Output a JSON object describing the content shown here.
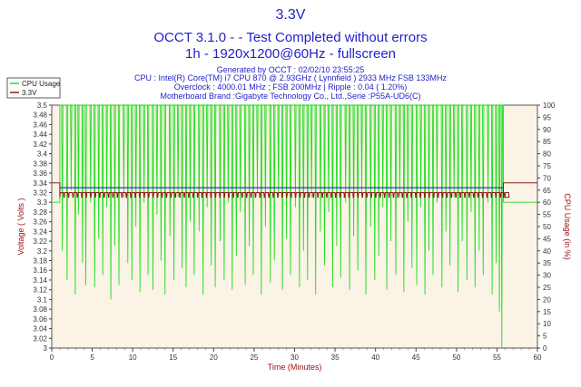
{
  "header": {
    "title": "3.3V",
    "subtitle1": "OCCT 3.1.0 -  - Test Completed without errors",
    "subtitle2": "1h - 1920x1200@60Hz - fullscreen",
    "generated": "Generated by OCCT : 02/02/10 23:55:25",
    "cpu": "CPU : Intel(R) Core(TM) i7 CPU 870 @ 2.93GHz ( Lynnfield ) 2933 MHz FSB 133MHz",
    "overclock": "Overclock : 4000.01 MHz ; FSB 200MHz | Ripple : 0.04 ( 1.20%)",
    "motherboard": "Motherboard Brand :Gigabyte Technology Co., Ltd.,Serie :P55A-UD6(C)"
  },
  "colors": {
    "voltage": "#8b1a1a",
    "cpu": "#22dd22",
    "average": "#3333cc",
    "plot_bg": "#fbf3e6",
    "axis_text_left": "#a01010",
    "axis_text_right": "#a01010"
  },
  "chart_data": {
    "type": "line",
    "xlabel": "Time (Minutes)",
    "ylabel": "Voltage ( Volts )",
    "y2label": "CPU Usage (in %)",
    "xlim": [
      0,
      60
    ],
    "ylim": [
      3.0,
      3.5
    ],
    "y2lim": [
      0,
      100
    ],
    "x_ticks": [
      "0",
      "5",
      "10",
      "15",
      "20",
      "25",
      "30",
      "35",
      "40",
      "45",
      "50",
      "55",
      "60"
    ],
    "y_ticks": [
      "3",
      "3.02",
      "3.04",
      "3.06",
      "3.08",
      "3.1",
      "3.12",
      "3.14",
      "3.16",
      "3.18",
      "3.2",
      "3.22",
      "3.24",
      "3.26",
      "3.28",
      "3.3",
      "3.32",
      "3.34",
      "3.36",
      "3.38",
      "3.4",
      "3.42",
      "3.44",
      "3.46",
      "3.48",
      "3.5"
    ],
    "y2_ticks": [
      "0",
      "5",
      "10",
      "15",
      "20",
      "25",
      "30",
      "35",
      "40",
      "45",
      "50",
      "55",
      "60",
      "65",
      "70",
      "75",
      "80",
      "85",
      "90",
      "95",
      "100"
    ],
    "grid": false,
    "legend_position": "top-left",
    "series": [
      {
        "name": "CPU Usage",
        "axis": "right",
        "idle_value": 60,
        "load_value": 100,
        "load_start": 1,
        "load_end": 55.8,
        "dips": [
          [
            1.3,
            40
          ],
          [
            1.9,
            28
          ],
          [
            2.4,
            65
          ],
          [
            2.9,
            22
          ],
          [
            3.3,
            55
          ],
          [
            3.8,
            35
          ],
          [
            4.2,
            26
          ],
          [
            4.8,
            60
          ],
          [
            5.3,
            25
          ],
          [
            5.8,
            45
          ],
          [
            6.3,
            30
          ],
          [
            6.8,
            58
          ],
          [
            7.3,
            20
          ],
          [
            7.8,
            42
          ],
          [
            8.3,
            26
          ],
          [
            8.9,
            62
          ],
          [
            9.4,
            35
          ],
          [
            9.9,
            28
          ],
          [
            10.4,
            50
          ],
          [
            10.9,
            23
          ],
          [
            11.4,
            60
          ],
          [
            11.9,
            30
          ],
          [
            12.5,
            24
          ],
          [
            13.0,
            55
          ],
          [
            13.5,
            36
          ],
          [
            14.0,
            22
          ],
          [
            14.6,
            46
          ],
          [
            15.1,
            28
          ],
          [
            15.6,
            62
          ],
          [
            16.1,
            33
          ],
          [
            16.6,
            25
          ],
          [
            17.1,
            52
          ],
          [
            17.6,
            30
          ],
          [
            18.2,
            48
          ],
          [
            18.7,
            22
          ],
          [
            19.2,
            58
          ],
          [
            19.7,
            34
          ],
          [
            20.2,
            25
          ],
          [
            20.8,
            44
          ],
          [
            21.3,
            28
          ],
          [
            21.8,
            60
          ],
          [
            22.3,
            24
          ],
          [
            22.8,
            38
          ],
          [
            23.3,
            56
          ],
          [
            23.9,
            26
          ],
          [
            24.4,
            42
          ],
          [
            24.9,
            30
          ],
          [
            25.4,
            64
          ],
          [
            25.9,
            22
          ],
          [
            26.4,
            50
          ],
          [
            27.0,
            27
          ],
          [
            27.5,
            36
          ],
          [
            28.0,
            62
          ],
          [
            28.5,
            24
          ],
          [
            29.0,
            45
          ],
          [
            29.5,
            30
          ],
          [
            30.1,
            58
          ],
          [
            30.6,
            25
          ],
          [
            31.1,
            40
          ],
          [
            31.6,
            28
          ],
          [
            32.1,
            62
          ],
          [
            32.6,
            22
          ],
          [
            33.2,
            48
          ],
          [
            33.7,
            34
          ],
          [
            34.2,
            56
          ],
          [
            34.7,
            25
          ],
          [
            35.2,
            42
          ],
          [
            35.7,
            29
          ],
          [
            36.3,
            60
          ],
          [
            36.8,
            24
          ],
          [
            37.3,
            46
          ],
          [
            37.8,
            32
          ],
          [
            38.3,
            63
          ],
          [
            38.8,
            22
          ],
          [
            39.4,
            50
          ],
          [
            39.9,
            28
          ],
          [
            40.4,
            38
          ],
          [
            40.9,
            58
          ],
          [
            41.4,
            24
          ],
          [
            41.9,
            44
          ],
          [
            42.5,
            30
          ],
          [
            43.0,
            62
          ],
          [
            43.5,
            23
          ],
          [
            44.0,
            52
          ],
          [
            44.5,
            33
          ],
          [
            45.1,
            26
          ],
          [
            45.6,
            58
          ],
          [
            46.1,
            22
          ],
          [
            46.6,
            40
          ],
          [
            47.1,
            30
          ],
          [
            47.6,
            60
          ],
          [
            48.2,
            25
          ],
          [
            48.7,
            48
          ],
          [
            49.2,
            34
          ],
          [
            49.7,
            62
          ],
          [
            50.2,
            23
          ],
          [
            50.7,
            44
          ],
          [
            51.3,
            28
          ],
          [
            51.8,
            56
          ],
          [
            52.3,
            25
          ],
          [
            52.8,
            40
          ],
          [
            53.3,
            30
          ],
          [
            53.9,
            60
          ],
          [
            54.4,
            22
          ],
          [
            54.9,
            35
          ],
          [
            55.3,
            15
          ],
          [
            55.6,
            0
          ]
        ]
      },
      {
        "name": "3.3V",
        "axis": "left",
        "idle_value": 3.34,
        "load_value": 3.32,
        "low_value": 3.31,
        "load_start": 1,
        "load_end": 55.8
      }
    ],
    "average_line": {
      "axis": "left",
      "value": 3.33
    }
  }
}
